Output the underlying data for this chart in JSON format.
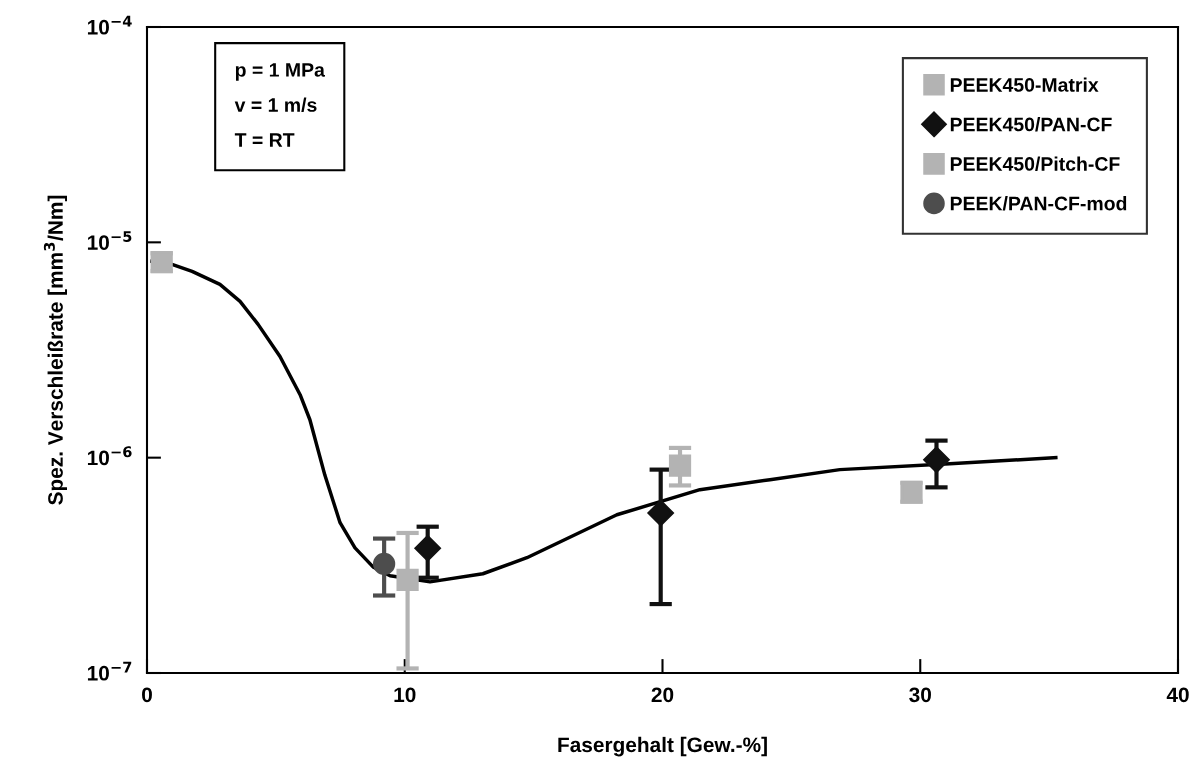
{
  "chart_data": {
    "type": "scatter",
    "xlabel": "Fasergehalt [Gew.-%]",
    "ylabel": "Spez. Verschleißrate [mm$^{3}$/Nm]",
    "log": "y",
    "grid": false,
    "legend": "top right",
    "xlim": [
      0,
      40
    ],
    "xticks": [
      0,
      10,
      20,
      30,
      40
    ],
    "ylim": [
      1e-07,
      0.0001
    ],
    "yticks": [
      {
        "value": 1e-07,
        "label": "10$^{−7}$"
      },
      {
        "value": 1e-06,
        "label": "10$^{−6}$"
      },
      {
        "value": 1e-05,
        "label": "10$^{−5}$"
      },
      {
        "value": 0.0001,
        "label": "10$^{−4}$"
      }
    ],
    "annotations": [
      "p = 1 MPa",
      "v = 1 m/s",
      "T = RT"
    ],
    "series": [
      {
        "type": "line",
        "color": "#000000",
        "marker": "none",
        "line_style": "solid",
        "x": [
          0.19,
          0.97,
          1.75,
          2.83,
          3.61,
          4.31,
          5.16,
          5.94,
          6.32,
          6.9,
          7.49,
          8.07,
          8.77,
          9.43,
          10.98,
          13.03,
          14.74,
          18.23,
          21.45,
          24.17,
          26.88,
          31.15,
          35.26
        ],
        "values": [
          8.16e-06,
          7.9e-06,
          7.33e-06,
          6.38e-06,
          5.32e-06,
          4.16e-06,
          2.95e-06,
          1.96e-06,
          1.5e-06,
          8.3e-07,
          4.99e-07,
          3.81e-07,
          3.11e-07,
          2.83e-07,
          2.65e-07,
          2.89e-07,
          3.43e-07,
          5.43e-07,
          7.1e-07,
          7.9e-07,
          8.8e-07,
          9.38e-07,
          1e-06
        ]
      },
      {
        "name": "PEEK450-Matrix",
        "color": "#b3b3b3",
        "marker": "square",
        "x": [
          0.57
        ],
        "values": [
          8.1e-06
        ],
        "errors": [
          [
            7.36e-06,
            8.89e-06
          ]
        ]
      },
      {
        "name": "PEEK450/PAN-CF",
        "color": "#111111",
        "marker": "diamond",
        "x": [
          10.89,
          19.93,
          30.63
        ],
        "values": [
          3.8e-07,
          5.53e-07,
          9.79e-07
        ],
        "errors": [
          [
            2.77e-07,
            4.78e-07
          ],
          [
            2.09e-07,
            8.8e-07
          ],
          [
            7.28e-07,
            1.2e-06
          ]
        ]
      },
      {
        "name": "PEEK450/Pitch-CF",
        "color": "#b3b3b3",
        "marker": "square",
        "x": [
          10.11,
          20.68,
          29.66
        ],
        "values": [
          2.71e-07,
          9.18e-07,
          6.9e-07
        ],
        "errors": [
          [
            1.05e-07,
            4.47e-07
          ],
          [
            7.43e-07,
            1.11e-06
          ],
          [
            6.24e-07,
            7.65e-07
          ]
        ]
      },
      {
        "name": "PEEK/PAN-CF-mod",
        "color": "#4d4d4d",
        "marker": "circle",
        "x": [
          9.2
        ],
        "values": [
          3.21e-07
        ],
        "errors": [
          [
            2.29e-07,
            4.21e-07
          ]
        ]
      }
    ]
  }
}
